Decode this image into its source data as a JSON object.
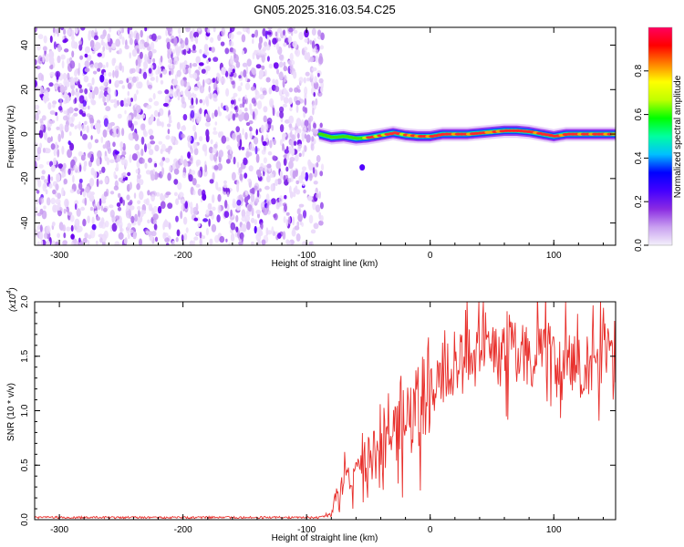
{
  "title": "GN05.2025.316.03.54.C25",
  "chart_data": [
    {
      "type": "heatmap",
      "xlabel": "Height of straight line (km)",
      "ylabel": "Frequency (Hz)",
      "xlim": [
        -320,
        150
      ],
      "ylim": [
        -50,
        48
      ],
      "xticks": [
        -300,
        -200,
        -100,
        0,
        100
      ],
      "yticks": [
        -40,
        -20,
        0,
        20,
        40
      ],
      "noise_region_x": [
        -320,
        -90
      ],
      "signal_start_x": -90,
      "trace": {
        "x": [
          -90,
          -80,
          -70,
          -60,
          -50,
          -40,
          -30,
          -20,
          -10,
          0,
          10,
          20,
          30,
          40,
          50,
          60,
          70,
          80,
          90,
          100,
          110,
          120,
          130,
          140,
          150
        ],
        "freq": [
          0,
          -1.5,
          -1,
          -2,
          -1.5,
          -0.5,
          0.5,
          -0.5,
          -1,
          -1,
          0,
          0,
          0,
          0.5,
          1,
          1.5,
          1.5,
          1,
          0,
          -1,
          0,
          0,
          0,
          0,
          0
        ]
      },
      "colorbar": {
        "label": "Normalized spectral amplitude",
        "range": [
          0,
          1
        ],
        "ticks": [
          "0.0",
          "0.2",
          "0.4",
          "0.6",
          "0.8"
        ],
        "colormap": [
          "#f4f0fb",
          "#c9a0f0",
          "#8a2be2",
          "#4400ff",
          "#0000ff",
          "#00c0ff",
          "#00ffa0",
          "#00ff00",
          "#c0ff00",
          "#ffff00",
          "#ff8000",
          "#ff0000",
          "#ff0060"
        ]
      }
    },
    {
      "type": "line",
      "xlabel": "Height of straight line (km)",
      "ylabel": "SNR (10 * v/v)",
      "scale_label": "(x10",
      "scale_exp": "4",
      "scale_close": ")",
      "xlim": [
        -320,
        150
      ],
      "ylim": [
        0,
        2.0
      ],
      "xticks": [
        -300,
        -200,
        -100,
        0,
        100
      ],
      "yticks": [
        "0.0",
        "0.5",
        "1.0",
        "1.5",
        "2.0"
      ],
      "line_color": "#e8302c",
      "envelope": {
        "x": [
          -320,
          -250,
          -150,
          -90,
          -80,
          -75,
          -70,
          -60,
          -50,
          -40,
          -30,
          -20,
          -10,
          0,
          10,
          20,
          30,
          40,
          50,
          60,
          70,
          80,
          90,
          100,
          110,
          120,
          130,
          140,
          150
        ],
        "y": [
          0.02,
          0.02,
          0.02,
          0.02,
          0.05,
          0.2,
          0.35,
          0.45,
          0.55,
          0.65,
          0.75,
          0.9,
          1.05,
          1.2,
          1.3,
          1.45,
          1.5,
          1.52,
          1.55,
          1.5,
          1.52,
          1.5,
          1.55,
          1.5,
          1.45,
          1.4,
          1.45,
          1.5,
          1.55
        ]
      }
    }
  ]
}
